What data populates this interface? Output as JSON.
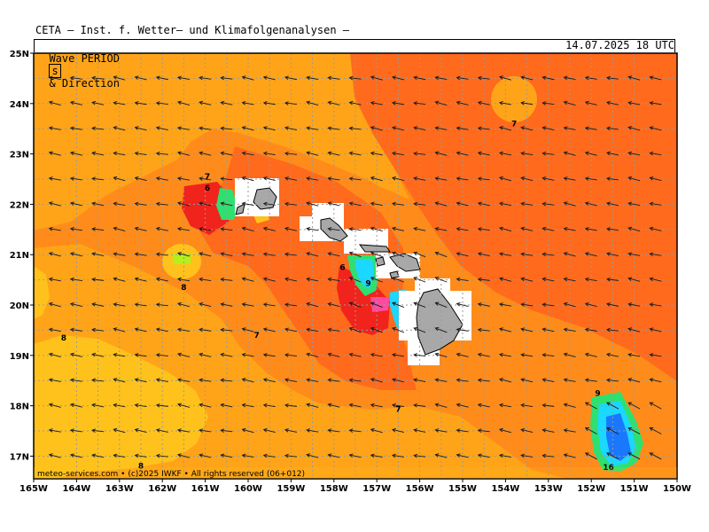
{
  "header": {
    "title": "CETA — Inst. f. Wetter— und Klimafolgenanalysen —",
    "subtitle_prefix": "Wave PERIOD",
    "subtitle_unit": "s",
    "subtitle_suffix": "& Direction",
    "valid_time": "14.07.2025 18 UTC"
  },
  "credit": "meteo-services.com • (c)2025 IWKF • All rights reserved (06+012)",
  "axes": {
    "lon_labels": [
      "165W",
      "164W",
      "163W",
      "162W",
      "161W",
      "160W",
      "159W",
      "158W",
      "157W",
      "156W",
      "155W",
      "154W",
      "153W",
      "152W",
      "151W",
      "150W"
    ],
    "lat_labels": [
      "25N",
      "24N",
      "23N",
      "22N",
      "21N",
      "20N",
      "19N",
      "18N",
      "17N"
    ]
  },
  "colors": {
    "period_5_6": "#ff6a1c",
    "period_6_7": "#ff8c1a",
    "period_7_8": "#ffa418",
    "period_8_9": "#ffc21c",
    "period_red": "#f0241c",
    "period_short": "#1ad8ff",
    "period_shortest": "#1a78ff",
    "period_green": "#2ee070",
    "period_yellow_green": "#b4f01c",
    "land": "#a8a8a8",
    "masked": "#ffffff"
  },
  "contour_labels": [
    {
      "text": "7",
      "lon": -160.95,
      "lat": 22.5
    },
    {
      "text": "6",
      "lon": -160.95,
      "lat": 22.27
    },
    {
      "text": "7",
      "lon": -153.8,
      "lat": 23.55
    },
    {
      "text": "8",
      "lon": -161.5,
      "lat": 20.3
    },
    {
      "text": "6",
      "lon": -157.8,
      "lat": 20.7
    },
    {
      "text": "9",
      "lon": -157.2,
      "lat": 20.38
    },
    {
      "text": "8",
      "lon": -164.3,
      "lat": 19.3
    },
    {
      "text": "7",
      "lon": -159.8,
      "lat": 19.35
    },
    {
      "text": "7",
      "lon": -156.5,
      "lat": 17.88
    },
    {
      "text": "9",
      "lon": -151.85,
      "lat": 18.2
    },
    {
      "text": "16",
      "lon": -151.6,
      "lat": 16.73
    },
    {
      "text": "8",
      "lon": -162.5,
      "lat": 16.75
    }
  ]
}
